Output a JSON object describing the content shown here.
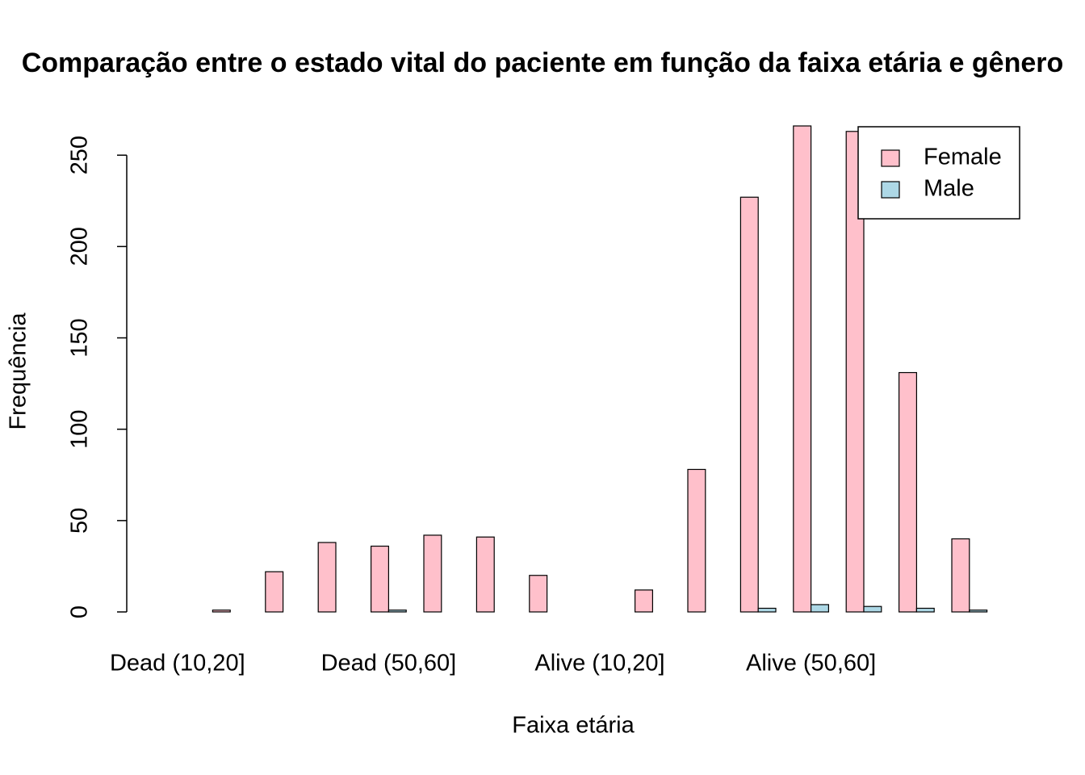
{
  "chart_data": {
    "type": "bar",
    "title": "Comparação entre o estado vital do paciente em função da faixa etária e gênero",
    "x_label": "Faixa etária",
    "y_label": "Frequência",
    "categories": [
      "Dead (10,20]",
      null,
      null,
      null,
      "Dead (50,60]",
      null,
      null,
      null,
      "Alive (10,20]",
      null,
      null,
      null,
      "Alive (50,60]",
      null,
      null,
      null
    ],
    "series": [
      {
        "name": "Female",
        "color": "#ffc0cb",
        "values": [
          0,
          1,
          22,
          38,
          36,
          42,
          41,
          20,
          0,
          12,
          78,
          227,
          266,
          263,
          131,
          40
        ]
      },
      {
        "name": "Male",
        "color": "#add8e6",
        "values": [
          0,
          0,
          0,
          0,
          1,
          0,
          0,
          0,
          0,
          0,
          0,
          2,
          4,
          3,
          2,
          1
        ]
      }
    ],
    "ylim": [
      0,
      266
    ],
    "yticks": [
      0,
      50,
      100,
      150,
      200,
      250
    ],
    "legend": "top-right"
  }
}
